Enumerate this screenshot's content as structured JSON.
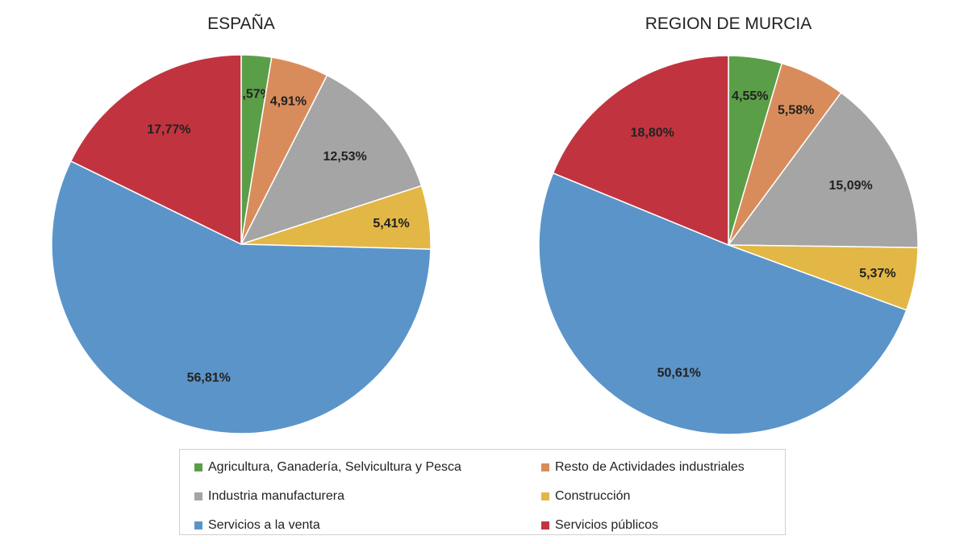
{
  "chart_data": [
    {
      "type": "pie",
      "title": "ESPAÑA",
      "categories": [
        "Agricultura, Ganadería, Selvicultura y Pesca",
        "Resto de Actividades industriales",
        "Industria manufacturera",
        "Construcción",
        "Servicios a la venta",
        "Servicios públicos"
      ],
      "values": [
        2.57,
        4.91,
        12.53,
        5.41,
        56.81,
        17.77
      ],
      "labels": [
        "2,57%",
        "4,91%",
        "12,53%",
        "5,41%",
        "56,81%",
        "17,77%"
      ]
    },
    {
      "type": "pie",
      "title": "REGION DE MURCIA",
      "categories": [
        "Agricultura, Ganadería, Selvicultura y Pesca",
        "Resto de Actividades industriales",
        "Industria manufacturera",
        "Construcción",
        "Servicios a la venta",
        "Servicios públicos"
      ],
      "values": [
        4.55,
        5.58,
        15.09,
        5.37,
        50.61,
        18.8
      ],
      "labels": [
        "4,55%",
        "5,58%",
        "15,09%",
        "5,37%",
        "50,61%",
        "18,80%"
      ]
    }
  ],
  "colors": [
    "#5b9e48",
    "#d98c5b",
    "#a5a5a5",
    "#e3b745",
    "#5b94c9",
    "#c1343f"
  ],
  "legend": [
    "Agricultura, Ganadería, Selvicultura y Pesca",
    "Resto de Actividades industriales",
    "Industria manufacturera",
    "Construcción",
    "Servicios a la venta",
    "Servicios públicos"
  ]
}
